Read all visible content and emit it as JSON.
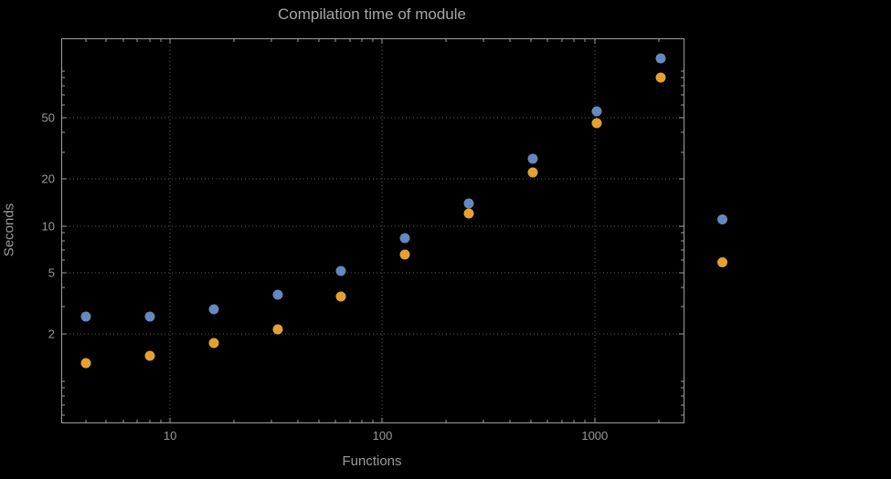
{
  "chart_data": {
    "type": "scatter",
    "title": "Compilation time of module",
    "xlabel": "Functions",
    "ylabel": "Seconds",
    "x_scale": "log",
    "y_scale": "log",
    "x_domain": [
      3.1,
      2620
    ],
    "y_domain": [
      0.54,
      160
    ],
    "grid": "dotted gridlines at labeled major ticks",
    "legend_position": "right-outside, labels not visible",
    "x_ticks": [
      {
        "value": 10,
        "label": "10"
      },
      {
        "value": 100,
        "label": "100"
      },
      {
        "value": 1000,
        "label": "1000"
      }
    ],
    "y_ticks": [
      {
        "value": 2,
        "label": "2"
      },
      {
        "value": 5,
        "label": "5"
      },
      {
        "value": 10,
        "label": "10"
      },
      {
        "value": 20,
        "label": "20"
      },
      {
        "value": 50,
        "label": "50"
      }
    ],
    "x": [
      4,
      8,
      16,
      32,
      64,
      128,
      256,
      512,
      1024,
      2048
    ],
    "series": [
      {
        "name": "series-blue",
        "color": "#6488c0",
        "values": [
          2.6,
          2.6,
          2.9,
          3.6,
          5.1,
          8.3,
          14,
          27,
          55,
          120
        ]
      },
      {
        "name": "series-orange",
        "color": "#e5a12f",
        "values": [
          1.3,
          1.45,
          1.75,
          2.15,
          3.5,
          6.5,
          12,
          22,
          46,
          90
        ]
      }
    ]
  },
  "colors": {
    "background": "#000000",
    "frame": "#9e9e9e",
    "gridline": "#5a5a5a",
    "title_text": "#a6a6a6",
    "axis_text": "#999999"
  }
}
